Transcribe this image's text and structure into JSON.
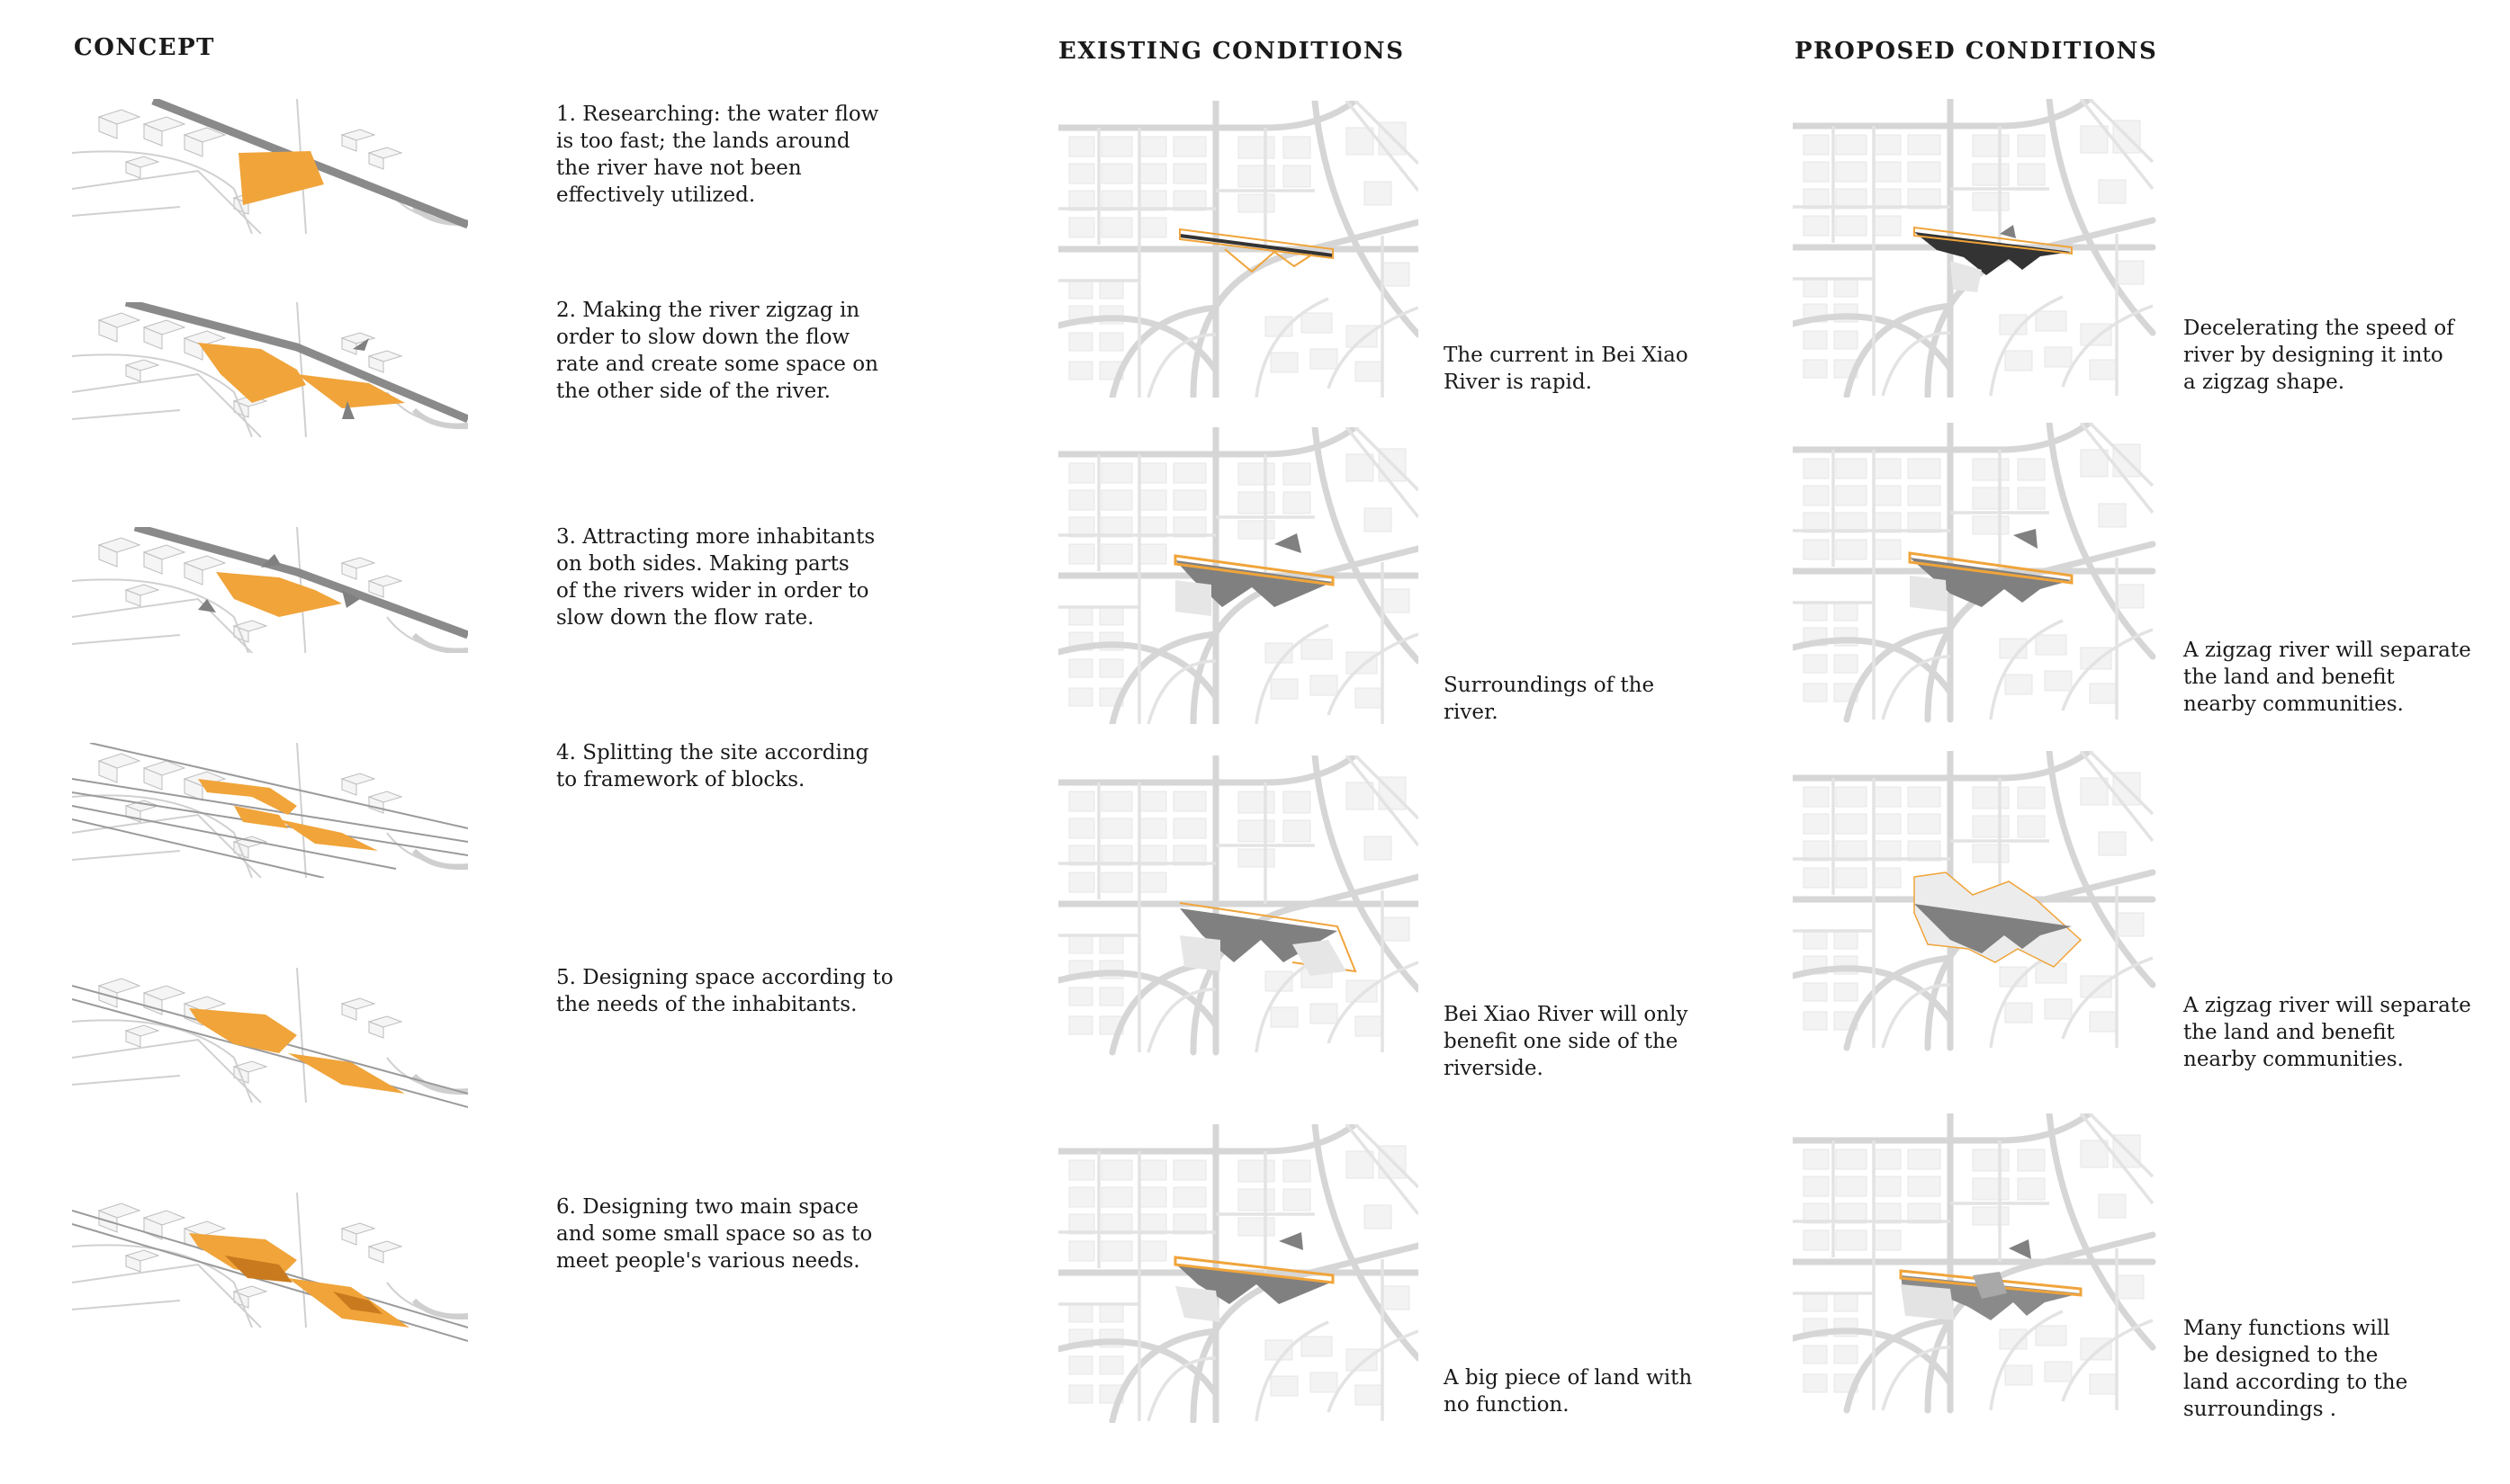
{
  "sections": {
    "concept": "CONCEPT",
    "existing": "EXISTING CONDITIONS",
    "proposed": "PROPOSED CONDITIONS"
  },
  "concept": {
    "steps": [
      "1. Researching: the water flow\nis too fast; the lands around\nthe river have not been\neffectively utilized.",
      "2. Making the river zigzag in\norder to slow down the flow\nrate and create some space on\nthe other side of the river.",
      "3. Attracting more inhabitants\non both sides. Making parts\nof the rivers wider in order to\nslow down the flow rate.",
      "4. Splitting the site according\nto framework of blocks.",
      "5. Designing space according to\nthe needs of the inhabitants.",
      "6. Designing two main space\nand some small space so as to\nmeet people's various needs."
    ]
  },
  "existing": {
    "captions": [
      "The current in Bei Xiao\nRiver is rapid.",
      "Surroundings of the\nriver.",
      "Bei Xiao River will only\nbenefit one side of the\nriverside.",
      "A big piece of land with\nno function."
    ]
  },
  "proposed": {
    "captions": [
      "Decelerating the speed of\nriver by designing it into\na zigzag shape.",
      "A zigzag river will separate\nthe land and benefit\nnearby communities.",
      "A zigzag river will separate\nthe land and benefit\nnearby communities.",
      "Many functions will\nbe designed to the\nland according to the\nsurroundings ."
    ]
  },
  "colors": {
    "accent_orange": "#f0a43a",
    "dark_orange": "#c97a1e",
    "river_gray": "#808080",
    "map_line": "#d6d6d6"
  }
}
